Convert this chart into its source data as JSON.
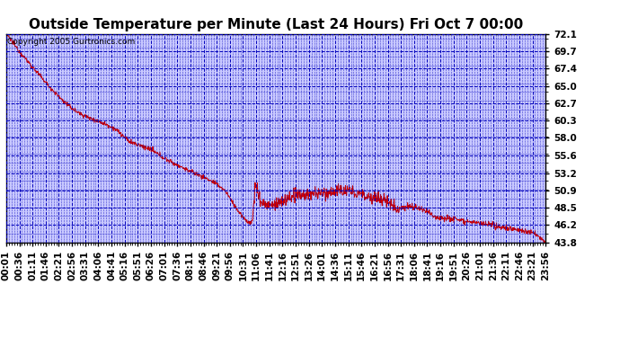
{
  "title": "Outside Temperature per Minute (Last 24 Hours) Fri Oct 7 00:00",
  "copyright_text": "Copyright 2005 Gurtronics.com",
  "yticks": [
    43.8,
    46.2,
    48.5,
    50.9,
    53.2,
    55.6,
    58.0,
    60.3,
    62.7,
    65.0,
    67.4,
    69.7,
    72.1
  ],
  "ymin": 43.8,
  "ymax": 72.1,
  "plot_bg_color": "#c8c8ff",
  "line_color": "#cc0000",
  "grid_color": "#0000bb",
  "title_fontsize": 11,
  "tick_fontsize": 7.5,
  "xtick_labels": [
    "00:01",
    "00:36",
    "01:11",
    "01:46",
    "02:21",
    "02:56",
    "03:31",
    "04:06",
    "04:41",
    "05:16",
    "05:51",
    "06:26",
    "07:01",
    "07:36",
    "08:11",
    "08:46",
    "09:21",
    "09:56",
    "10:31",
    "11:06",
    "11:41",
    "12:16",
    "12:51",
    "13:26",
    "14:01",
    "14:36",
    "15:11",
    "15:46",
    "16:21",
    "16:56",
    "17:31",
    "18:06",
    "18:41",
    "19:16",
    "19:51",
    "20:26",
    "21:01",
    "21:36",
    "22:11",
    "22:46",
    "23:21",
    "23:56"
  ]
}
